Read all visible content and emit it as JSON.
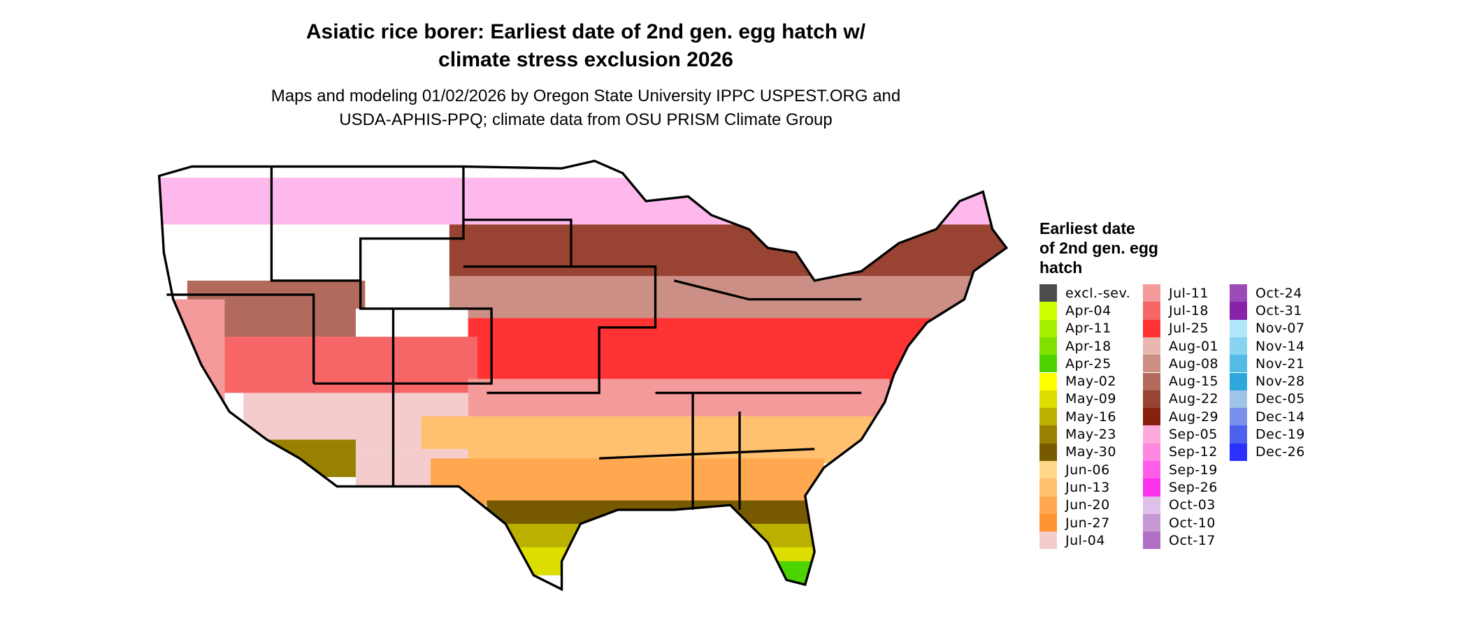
{
  "title": {
    "line1": "Asiatic rice borer: Earliest date of 2nd gen. egg hatch w/",
    "line2": "climate stress exclusion 2026"
  },
  "subtitle": {
    "line1": "Maps and modeling 01/02/2026 by Oregon State University IPPC USPEST.ORG and",
    "line2": "USDA-APHIS-PPQ; climate data from OSU PRISM Climate Group"
  },
  "legend": {
    "title": [
      "Earliest date",
      "of 2nd gen. egg",
      "hatch"
    ],
    "columns": [
      [
        {
          "label": "excl.-sev.",
          "color": "#4d4d4d"
        },
        {
          "label": "Apr-04",
          "color": "#ccff00"
        },
        {
          "label": "Apr-11",
          "color": "#a6ee00"
        },
        {
          "label": "Apr-18",
          "color": "#80e000"
        },
        {
          "label": "Apr-25",
          "color": "#4dd400"
        },
        {
          "label": "May-02",
          "color": "#ffff00"
        },
        {
          "label": "May-09",
          "color": "#dddd00"
        },
        {
          "label": "May-16",
          "color": "#bbb000"
        },
        {
          "label": "May-23",
          "color": "#988000"
        },
        {
          "label": "May-30",
          "color": "#775a00"
        },
        {
          "label": "Jun-06",
          "color": "#ffd88a"
        },
        {
          "label": "Jun-13",
          "color": "#ffc070"
        },
        {
          "label": "Jun-20",
          "color": "#ffa850"
        },
        {
          "label": "Jun-27",
          "color": "#ff9530"
        },
        {
          "label": "Jul-04",
          "color": "#f4cccc"
        }
      ],
      [
        {
          "label": "Jul-11",
          "color": "#f59a9a"
        },
        {
          "label": "Jul-18",
          "color": "#f76666"
        },
        {
          "label": "Jul-25",
          "color": "#ff3333"
        },
        {
          "label": "Aug-01",
          "color": "#e8b8b0"
        },
        {
          "label": "Aug-08",
          "color": "#cc8f85"
        },
        {
          "label": "Aug-15",
          "color": "#b26a5c"
        },
        {
          "label": "Aug-22",
          "color": "#994433"
        },
        {
          "label": "Aug-29",
          "color": "#88200e"
        },
        {
          "label": "Sep-05",
          "color": "#ffaadd"
        },
        {
          "label": "Sep-12",
          "color": "#ff88e0"
        },
        {
          "label": "Sep-19",
          "color": "#ff5ce8"
        },
        {
          "label": "Sep-26",
          "color": "#ff33ee"
        },
        {
          "label": "Oct-03",
          "color": "#e0c0e8"
        },
        {
          "label": "Oct-10",
          "color": "#c898d4"
        },
        {
          "label": "Oct-17",
          "color": "#b070c4"
        }
      ],
      [
        {
          "label": "Oct-24",
          "color": "#9c4ab8"
        },
        {
          "label": "Oct-31",
          "color": "#8822aa"
        },
        {
          "label": "Nov-07",
          "color": "#b0e8fa"
        },
        {
          "label": "Nov-14",
          "color": "#88d4f0"
        },
        {
          "label": "Nov-21",
          "color": "#55bbe6"
        },
        {
          "label": "Nov-28",
          "color": "#2ea8dc"
        },
        {
          "label": "Dec-05",
          "color": "#a0c4e8"
        },
        {
          "label": "Dec-14",
          "color": "#7790ea"
        },
        {
          "label": "Dec-19",
          "color": "#4e60ee"
        },
        {
          "label": "Dec-26",
          "color": "#2a30ff"
        }
      ]
    ]
  }
}
